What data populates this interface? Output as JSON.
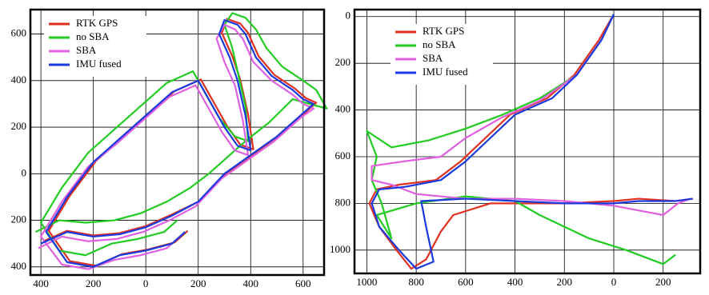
{
  "chart_data": [
    {
      "type": "line",
      "grid": true,
      "legend": "upper left",
      "xlim": [
        -440,
        680
      ],
      "ylim": [
        -435,
        705
      ],
      "xticks": [
        {
          "value": -400,
          "label": "400"
        },
        {
          "value": -200,
          "label": "200"
        },
        0,
        200,
        400,
        600
      ],
      "yticks": [
        600,
        400,
        200,
        0,
        {
          "value": -200,
          "label": "200"
        },
        {
          "value": -400,
          "label": "400"
        }
      ],
      "series": [
        {
          "name": "RTK GPS",
          "color": "#e03020",
          "x": [
            -390,
            -300,
            -200,
            -100,
            0,
            100,
            210,
            260,
            310,
            410,
            510,
            610,
            650,
            610,
            570,
            490,
            430,
            390,
            360,
            310,
            290,
            330,
            360,
            390,
            410,
            360,
            310,
            260,
            210,
            110,
            10,
            -90,
            -190,
            -290,
            -370,
            -290,
            -190,
            -90,
            10,
            110,
            160
          ],
          "values": [
            -290,
            -245,
            -265,
            -255,
            -225,
            -175,
            -115,
            -55,
            5,
            85,
            165,
            265,
            305,
            325,
            365,
            425,
            505,
            605,
            645,
            665,
            605,
            505,
            405,
            255,
            105,
            125,
            205,
            305,
            405,
            355,
            255,
            155,
            55,
            -95,
            -245,
            -375,
            -395,
            -345,
            -325,
            -295,
            -245
          ]
        },
        {
          "name": "no SBA",
          "color": "#22cc22",
          "x": [
            -420,
            -330,
            -230,
            -120,
            -20,
            80,
            170,
            240,
            300,
            380,
            470,
            560,
            690,
            650,
            600,
            520,
            460,
            420,
            380,
            330,
            300,
            330,
            350,
            380,
            390,
            340,
            280,
            230,
            180,
            80,
            -20,
            -120,
            -220,
            -320,
            -400,
            -330,
            -230,
            -130,
            -30,
            70,
            120
          ],
          "values": [
            -250,
            -200,
            -210,
            -200,
            -170,
            -120,
            -60,
            0,
            60,
            140,
            220,
            320,
            280,
            360,
            400,
            460,
            540,
            620,
            670,
            690,
            640,
            540,
            440,
            290,
            140,
            160,
            240,
            340,
            440,
            390,
            290,
            190,
            90,
            -60,
            -210,
            -330,
            -350,
            -300,
            -280,
            -250,
            -200
          ]
        },
        {
          "name": "SBA",
          "color": "#e060e0",
          "x": [
            -410,
            -320,
            -220,
            -110,
            -10,
            90,
            190,
            240,
            290,
            390,
            490,
            590,
            640,
            600,
            560,
            480,
            410,
            370,
            340,
            300,
            270,
            300,
            340,
            370,
            390,
            340,
            290,
            240,
            190,
            90,
            -10,
            -110,
            -220,
            -320,
            -400,
            -320,
            -220,
            -120,
            -20,
            80,
            130
          ],
          "values": [
            -320,
            -270,
            -290,
            -280,
            -250,
            -200,
            -140,
            -80,
            -20,
            60,
            140,
            240,
            280,
            300,
            340,
            400,
            480,
            580,
            620,
            640,
            580,
            480,
            380,
            230,
            80,
            100,
            180,
            280,
            380,
            330,
            230,
            130,
            30,
            -120,
            -270,
            -390,
            -410,
            -370,
            -350,
            -320,
            -270
          ]
        },
        {
          "name": "IMU fused",
          "color": "#1a3ae0",
          "x": [
            -400,
            -300,
            -200,
            -100,
            0,
            100,
            200,
            250,
            300,
            400,
            500,
            600,
            640,
            600,
            560,
            480,
            420,
            380,
            350,
            300,
            280,
            320,
            350,
            380,
            400,
            350,
            300,
            250,
            200,
            100,
            0,
            -100,
            -200,
            -300,
            -380,
            -300,
            -200,
            -100,
            0,
            100,
            150
          ],
          "values": [
            -300,
            -250,
            -270,
            -260,
            -230,
            -180,
            -120,
            -60,
            0,
            80,
            160,
            260,
            300,
            320,
            360,
            420,
            500,
            600,
            640,
            660,
            600,
            500,
            400,
            250,
            100,
            120,
            200,
            300,
            400,
            350,
            250,
            150,
            50,
            -100,
            -250,
            -380,
            -400,
            -350,
            -330,
            -300,
            -250
          ]
        }
      ]
    },
    {
      "type": "line",
      "grid": true,
      "legend": "upper left",
      "xlim": [
        1050,
        -350
      ],
      "ylim": [
        1100,
        -30
      ],
      "xticks": [
        1000,
        800,
        600,
        400,
        200,
        0,
        {
          "value": -200,
          "label": "200"
        }
      ],
      "yticks": [
        0,
        200,
        400,
        600,
        800,
        1000
      ],
      "series": [
        {
          "name": "RTK GPS",
          "color": "#e03020",
          "x": [
            0,
            60,
            160,
            270,
            420,
            520,
            620,
            720,
            870,
            960,
            990,
            950,
            880,
            820,
            760,
            700,
            650,
            500,
            350,
            200,
            0,
            -100,
            -250,
            -320
          ],
          "values": [
            -10,
            100,
            250,
            350,
            420,
            520,
            620,
            700,
            720,
            740,
            800,
            900,
            1000,
            1080,
            1040,
            920,
            850,
            800,
            800,
            800,
            790,
            780,
            790,
            780
          ]
        },
        {
          "name": "no SBA",
          "color": "#22cc22",
          "x": [
            0,
            50,
            150,
            300,
            450,
            600,
            750,
            900,
            1000,
            960,
            980,
            940,
            900,
            960,
            800,
            600,
            400,
            300,
            200,
            100,
            -50,
            -200,
            -250
          ],
          "values": [
            -10,
            100,
            250,
            350,
            420,
            480,
            530,
            560,
            490,
            600,
            700,
            800,
            950,
            850,
            800,
            770,
            790,
            850,
            900,
            950,
            1000,
            1060,
            1020
          ]
        },
        {
          "name": "SBA",
          "color": "#e060e0",
          "x": [
            0,
            50,
            150,
            300,
            450,
            600,
            700,
            850,
            980,
            980,
            900,
            800,
            600,
            400,
            200,
            0,
            -100,
            -200,
            -260,
            -310
          ],
          "values": [
            -10,
            100,
            250,
            360,
            430,
            520,
            600,
            620,
            640,
            700,
            720,
            760,
            780,
            780,
            790,
            810,
            830,
            850,
            800,
            780
          ]
        },
        {
          "name": "IMU fused",
          "color": "#1a3ae0",
          "x": [
            0,
            50,
            150,
            250,
            400,
            500,
            600,
            700,
            850,
            950,
            980,
            950,
            870,
            800,
            730,
            760,
            780,
            600,
            400,
            200,
            0,
            -100,
            -250,
            -320
          ],
          "values": [
            -10,
            100,
            250,
            350,
            420,
            520,
            620,
            700,
            730,
            740,
            800,
            900,
            1000,
            1080,
            1050,
            900,
            790,
            780,
            790,
            800,
            800,
            790,
            790,
            780
          ]
        }
      ]
    }
  ]
}
